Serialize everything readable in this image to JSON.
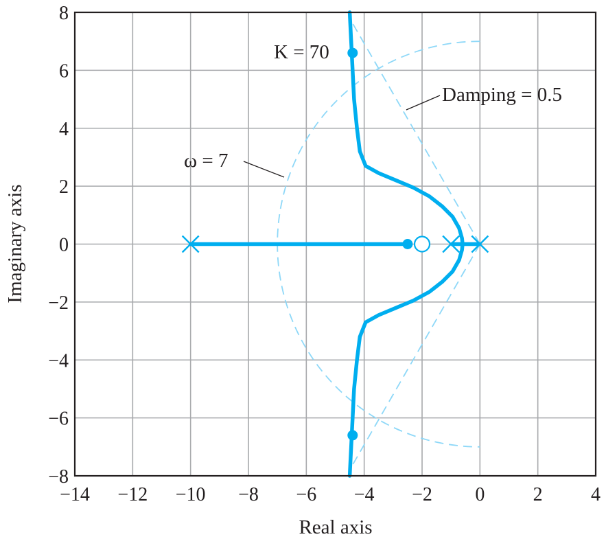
{
  "chart_data": {
    "type": "line",
    "title": "",
    "xlabel": "Real axis",
    "ylabel": "Imaginary axis",
    "xlim": [
      -14,
      4
    ],
    "ylim": [
      -8,
      8
    ],
    "grid": true,
    "x_ticks": [
      -14,
      -12,
      -10,
      -8,
      -6,
      -4,
      -2,
      0,
      2,
      4
    ],
    "y_ticks": [
      -8,
      -6,
      -4,
      -2,
      0,
      2,
      4,
      6,
      8
    ],
    "x_tick_labels": [
      "−14",
      "−12",
      "−10",
      "−8",
      "−6",
      "−4",
      "−2",
      "0",
      "2",
      "4"
    ],
    "y_tick_labels": [
      "−8",
      "−6",
      "−4",
      "−2",
      "0",
      "2",
      "4",
      "6",
      "8"
    ],
    "colors": {
      "locus": "#00aeef",
      "guide": "#8ed8f8",
      "grid": "#a7a9ac",
      "text": "#231f20"
    },
    "locus_upper": [
      [
        -4.5,
        8.0
      ],
      [
        -4.45,
        7.0
      ],
      [
        -4.4,
        6.0
      ],
      [
        -4.35,
        5.0
      ],
      [
        -4.25,
        4.0
      ],
      [
        -4.15,
        3.2
      ],
      [
        -3.95,
        2.7
      ],
      [
        -3.5,
        2.45
      ],
      [
        -2.9,
        2.2
      ],
      [
        -2.3,
        1.95
      ],
      [
        -1.75,
        1.65
      ],
      [
        -1.3,
        1.3
      ],
      [
        -0.95,
        0.95
      ],
      [
        -0.72,
        0.55
      ],
      [
        -0.62,
        0.2
      ],
      [
        -0.6,
        0.0
      ]
    ],
    "locus_real_axis": [
      [
        -10,
        0
      ],
      [
        -2.5,
        0
      ]
    ],
    "poles": [
      [
        -10,
        0
      ],
      [
        -1,
        0
      ],
      [
        0,
        0
      ]
    ],
    "zeros": [
      [
        -2,
        0
      ]
    ],
    "marked_points": [
      [
        -4.4,
        6.6
      ],
      [
        -4.4,
        -6.6
      ],
      [
        -2.5,
        0
      ]
    ],
    "omega_circle_radius": 7,
    "damping_line_end": [
      -4.47,
      7.74
    ],
    "annotations": {
      "gain": "K = 70",
      "damping": "Damping = 0.5",
      "omega": "ω = 7"
    }
  }
}
